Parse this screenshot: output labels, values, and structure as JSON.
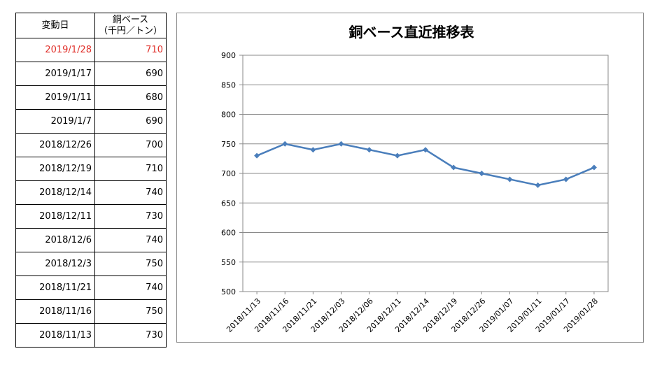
{
  "table": {
    "header_date": "変動日",
    "header_value_line1": "銅ベース",
    "header_value_line2": "（千円／トン）",
    "rows": [
      {
        "date": "2019/1/28",
        "value": "710"
      },
      {
        "date": "2019/1/17",
        "value": "690"
      },
      {
        "date": "2019/1/11",
        "value": "680"
      },
      {
        "date": "2019/1/7",
        "value": "690"
      },
      {
        "date": "2018/12/26",
        "value": "700"
      },
      {
        "date": "2018/12/19",
        "value": "710"
      },
      {
        "date": "2018/12/14",
        "value": "740"
      },
      {
        "date": "2018/12/11",
        "value": "730"
      },
      {
        "date": "2018/12/6",
        "value": "740"
      },
      {
        "date": "2018/12/3",
        "value": "750"
      },
      {
        "date": "2018/11/21",
        "value": "740"
      },
      {
        "date": "2018/11/16",
        "value": "750"
      },
      {
        "date": "2018/11/13",
        "value": "730"
      }
    ],
    "highlight_color": "#e0302a"
  },
  "chart_data": {
    "type": "line",
    "title": "銅ベース直近推移表",
    "xlabel": "",
    "ylabel": "",
    "categories": [
      "2018/11/13",
      "2018/11/16",
      "2018/11/21",
      "2018/12/03",
      "2018/12/06",
      "2018/12/11",
      "2018/12/14",
      "2018/12/19",
      "2018/12/26",
      "2019/01/07",
      "2019/01/11",
      "2019/01/17",
      "2019/01/28"
    ],
    "series": [
      {
        "values": [
          730,
          750,
          740,
          750,
          740,
          730,
          740,
          710,
          700,
          690,
          680,
          690,
          710
        ]
      }
    ],
    "ylim": [
      500,
      900
    ],
    "yticks": [
      500,
      550,
      600,
      650,
      700,
      750,
      800,
      850,
      900
    ],
    "grid": true,
    "line_color": "#4a7ebb",
    "marker": "diamond"
  }
}
